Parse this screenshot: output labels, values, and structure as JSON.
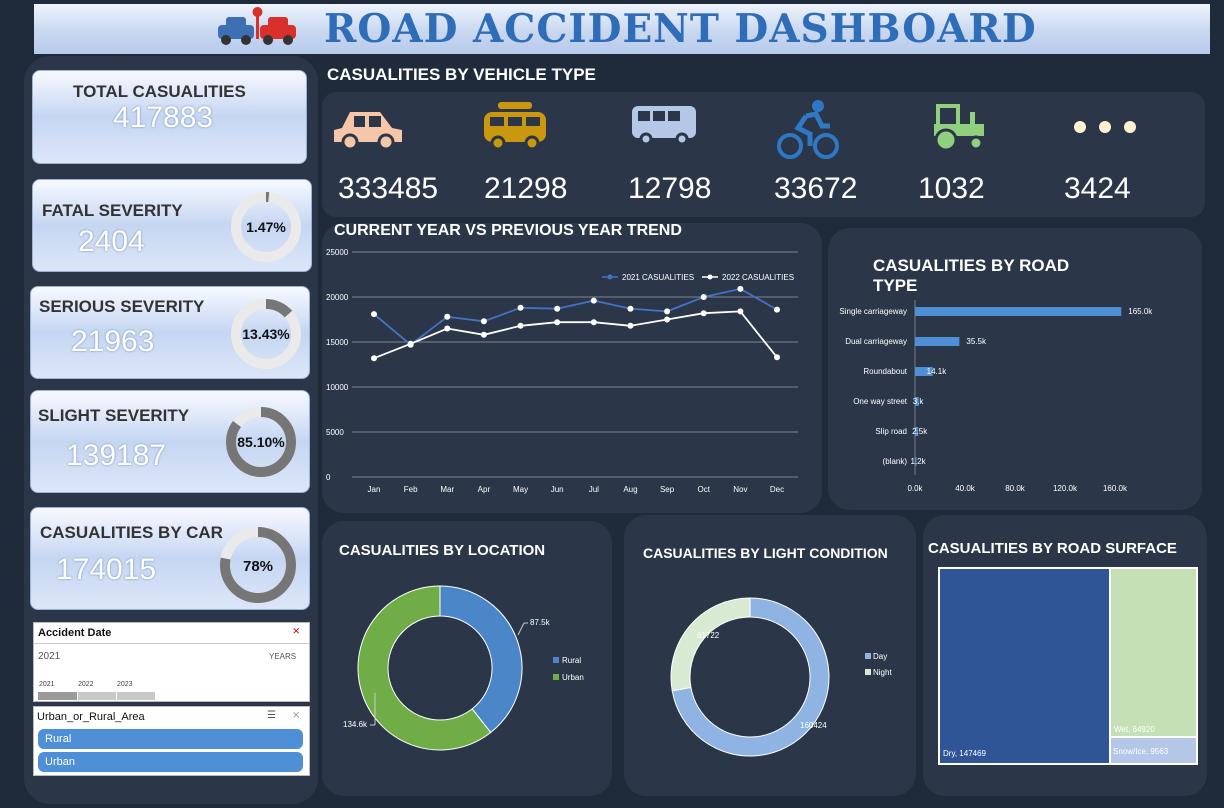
{
  "header": {
    "title": "ROAD ACCIDENT DASHBOARD",
    "logo_icon": "car-crash-icon"
  },
  "kpis": {
    "total": {
      "label": "TOTAL CASUALITIES",
      "value": "417883"
    },
    "fatal": {
      "label": "FATAL SEVERITY",
      "value": "2404",
      "pct": "1.47%",
      "fraction": 0.0147
    },
    "serious": {
      "label": "SERIOUS SEVERITY",
      "value": "21963",
      "pct": "13.43%",
      "fraction": 0.1343
    },
    "slight": {
      "label": "SLIGHT SEVERITY",
      "value": "139187",
      "pct": "85.10%",
      "fraction": 0.851
    },
    "car": {
      "label": "CASUALITIES BY CAR",
      "value": "174015",
      "pct": "78%",
      "fraction": 0.78
    }
  },
  "vehicles": {
    "title": "CASUALITIES BY VEHICLE TYPE",
    "items": [
      {
        "icon": "car-icon",
        "color": "#f6c6a8",
        "value": "333485"
      },
      {
        "icon": "van-icon",
        "color": "#c9980e",
        "value": "21298"
      },
      {
        "icon": "bus-icon",
        "color": "#b4c7e7",
        "value": "12798"
      },
      {
        "icon": "bicycle-icon",
        "color": "#2f78c4",
        "value": "33672"
      },
      {
        "icon": "tractor-icon",
        "color": "#8fcf7e",
        "value": "1032"
      },
      {
        "icon": "more-dots-icon",
        "color": "#fff2cc",
        "value": "3424"
      }
    ]
  },
  "trend": {
    "title": "CURRENT YEAR VS PREVIOUS YEAR TREND",
    "legend": [
      "2021 CASUALITIES",
      "2022 CASUALITIES"
    ]
  },
  "roadtype": {
    "title_line1": "CASUALITIES BY ROAD",
    "title_line2": "TYPE"
  },
  "location": {
    "title": "CASUALITIES BY LOCATION",
    "legend": [
      "Rural",
      "Urban"
    ],
    "labels": [
      "87.5k",
      "134.6k"
    ]
  },
  "light": {
    "title": "CASUALITIES BY LIGHT CONDITION",
    "legend": [
      "Day",
      "Night"
    ],
    "labels": [
      "61722",
      "160424"
    ]
  },
  "surface": {
    "title": "CASUALITIES BY ROAD SURFACE",
    "labels": [
      "Dry, 147469",
      "Wet, 64920",
      "Snow/Ice, 9563"
    ]
  },
  "slicer_date": {
    "title": "Accident Date",
    "selected": "2021",
    "level": "YEARS",
    "years": [
      "2021",
      "2022",
      "2023"
    ]
  },
  "slicer_area": {
    "title": "Urban_or_Rural_Area",
    "items": [
      "Rural",
      "Urban"
    ]
  },
  "chart_data": [
    {
      "type": "line",
      "title": "CURRENT YEAR VS PREVIOUS YEAR TREND",
      "categories": [
        "Jan",
        "Feb",
        "Mar",
        "Apr",
        "May",
        "Jun",
        "Jul",
        "Aug",
        "Sep",
        "Oct",
        "Nov",
        "Dec"
      ],
      "series": [
        {
          "name": "2021 CASUALITIES",
          "color": "#4472c4",
          "values": [
            18100,
            14700,
            17800,
            17300,
            18800,
            18700,
            19600,
            18700,
            18400,
            20000,
            20900,
            18600
          ]
        },
        {
          "name": "2022 CASUALITIES",
          "color": "#ffffff",
          "values": [
            13200,
            14800,
            16500,
            15800,
            16800,
            17200,
            17200,
            16800,
            17500,
            18200,
            18400,
            13300
          ]
        }
      ],
      "ylim": [
        0,
        25000
      ],
      "yticks": [
        "0",
        "5000",
        "10000",
        "15000",
        "20000",
        "25000"
      ],
      "grid": true,
      "legend": "top-right"
    },
    {
      "type": "bar",
      "title": "CASUALITIES BY ROAD TYPE",
      "orientation": "horizontal",
      "categories": [
        "Single carriageway",
        "Dual carriageway",
        "Roundabout",
        "One way street",
        "Slip road",
        "(blank)"
      ],
      "values": [
        165.0,
        35.5,
        14.1,
        3.0,
        2.5,
        1.2
      ],
      "labels": [
        "165.0k",
        "35.5k",
        "14.1k",
        "3.k",
        "2.5k",
        "1.2k"
      ],
      "xticks": [
        "0.0k",
        "40.0k",
        "80.0k",
        "120.0k",
        "160.0k"
      ],
      "xlim": [
        0,
        180
      ]
    },
    {
      "type": "pie",
      "title": "CASUALITIES BY LOCATION",
      "categories": [
        "Rural",
        "Urban"
      ],
      "values": [
        87.5,
        134.6
      ],
      "colors": [
        "#4a86c8",
        "#70ad47"
      ]
    },
    {
      "type": "pie",
      "title": "CASUALITIES BY LIGHT CONDITION",
      "categories": [
        "Day",
        "Night"
      ],
      "values": [
        160424,
        61722
      ],
      "colors": [
        "#8fb4e3",
        "#d9ead3"
      ]
    },
    {
      "type": "table",
      "title": "CASUALITIES BY ROAD SURFACE",
      "categories": [
        "Dry",
        "Wet",
        "Snow/Ice"
      ],
      "values": [
        147469,
        64920,
        9563
      ],
      "colors": [
        "#2f5597",
        "#c5e0b4",
        "#b4c7e7"
      ]
    }
  ]
}
